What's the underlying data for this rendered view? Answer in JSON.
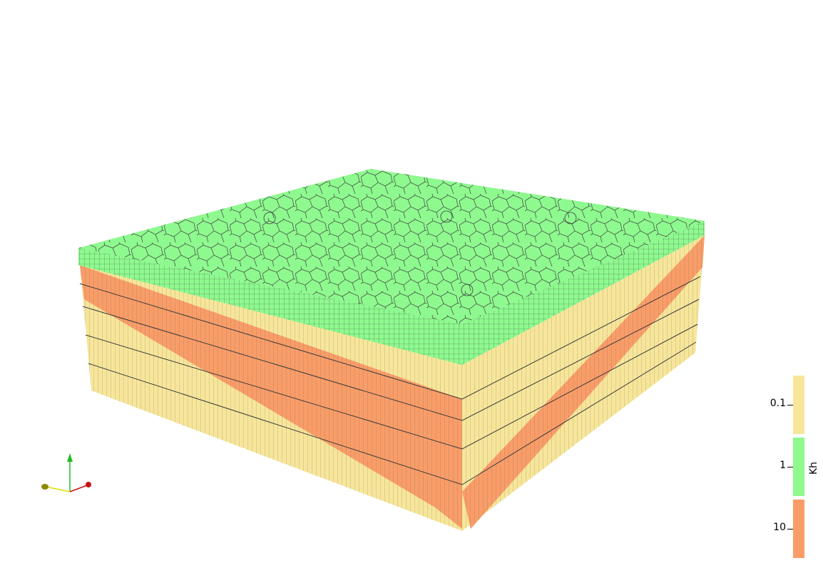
{
  "legend": {
    "title": "Kh",
    "entries": [
      {
        "label": "0.1",
        "color": "#f7e69a"
      },
      {
        "label": "1",
        "color": "#8ef98f"
      },
      {
        "label": "10",
        "color": "#f99d68"
      }
    ]
  },
  "colors": {
    "top_surface": "#8ef98f",
    "low_k_layer": "#f7e69a",
    "high_k_layer": "#f99d68",
    "mesh_lines": "#3a3a3a",
    "axis_y": "#22bb22",
    "axis_x": "#cc1111",
    "axis_z": "#dddd00"
  },
  "orientation_axes": {
    "icon": "xyz-orientation-axes-icon"
  }
}
